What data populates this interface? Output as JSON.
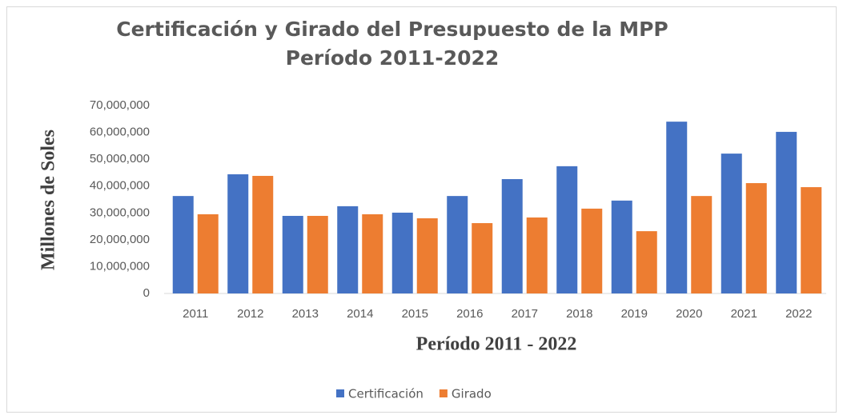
{
  "chart_data": {
    "type": "bar",
    "title": "Certificación y Girado del Presupuesto de la MPP",
    "subtitle": "Período 2011-2022",
    "x_label": "Período 2011 - 2022",
    "y_label": "Millones de Soles",
    "categories": [
      "2011",
      "2012",
      "2013",
      "2014",
      "2015",
      "2016",
      "2017",
      "2018",
      "2019",
      "2020",
      "2021",
      "2022"
    ],
    "series": [
      {
        "name": "Certificación",
        "color": "#4472c4",
        "values": [
          36300000,
          44400000,
          28900000,
          32500000,
          30100000,
          36300000,
          42600000,
          47400000,
          34600000,
          64000000,
          52100000,
          60200000
        ]
      },
      {
        "name": "Girado",
        "color": "#ed7d31",
        "values": [
          29500000,
          43800000,
          28900000,
          29500000,
          28000000,
          26200000,
          28300000,
          31600000,
          23200000,
          36300000,
          41100000,
          39600000
        ]
      }
    ],
    "ylim": [
      0,
      70000000
    ],
    "yticks": [
      0,
      {
        "value": 10000000,
        "label": "10,000,000"
      },
      {
        "value": 20000000,
        "label": "20,000,000"
      },
      {
        "value": 30000000,
        "label": "30,000,000"
      },
      {
        "value": 40000000,
        "label": "40,000,000"
      },
      {
        "value": 50000000,
        "label": "50,000,000"
      },
      {
        "value": 60000000,
        "label": "60,000,000"
      },
      {
        "value": 70000000,
        "label": "70,000,000"
      }
    ],
    "grid": false,
    "legend": "bottom"
  }
}
